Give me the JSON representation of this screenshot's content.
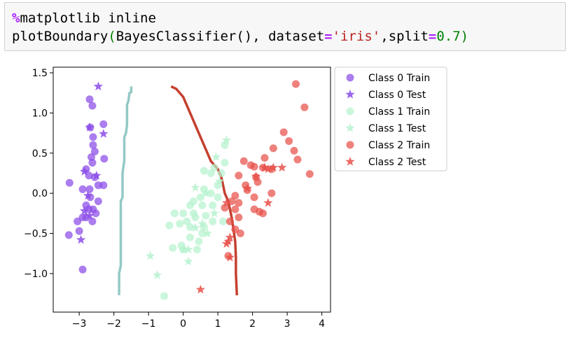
{
  "code": {
    "line1": {
      "magic": "%",
      "rest": "matplotlib inline"
    },
    "line2": {
      "func": "plotBoundary",
      "open": "(",
      "cls": "BayesClassifier(), dataset",
      "eq1": "=",
      "str": "'iris'",
      "sep": ",split",
      "eq2": "=",
      "num": "0.7",
      "close": ")"
    }
  },
  "colors": {
    "class0": "#8a4be8",
    "class1": "#b6f2cf",
    "class2": "#e8504a",
    "boundary_left": "#93c9c6",
    "boundary_right": "#c5402f"
  },
  "chart_data": {
    "type": "scatter",
    "xlim": [
      -3.75,
      4.25
    ],
    "ylim": [
      -1.48,
      1.57
    ],
    "xticks": [
      -3,
      -2,
      -1,
      0,
      1,
      2,
      3,
      4
    ],
    "xtick_labels": [
      "−3",
      "−2",
      "−1",
      "0",
      "1",
      "2",
      "3",
      "4"
    ],
    "yticks": [
      1.5,
      1.0,
      0.5,
      0.0,
      -0.5,
      -1.0
    ],
    "ytick_labels": [
      "1.5",
      "1.0",
      "0.5",
      "0.0",
      "−0.5",
      "−1.0"
    ],
    "legend_position": "outside-right",
    "series": [
      {
        "name": "Class 0 Train",
        "marker": "circle",
        "color": "#8a4be8",
        "points": [
          [
            -2.7,
            1.17
          ],
          [
            -2.62,
            1.09
          ],
          [
            -2.3,
            0.86
          ],
          [
            -2.68,
            0.82
          ],
          [
            -2.6,
            0.7
          ],
          [
            -2.6,
            0.6
          ],
          [
            -2.55,
            0.52
          ],
          [
            -2.65,
            0.45
          ],
          [
            -2.28,
            0.43
          ],
          [
            -2.62,
            0.38
          ],
          [
            -2.8,
            0.3
          ],
          [
            -2.72,
            0.22
          ],
          [
            -2.55,
            0.2
          ],
          [
            -2.3,
            0.1
          ],
          [
            -2.45,
            0.1
          ],
          [
            -2.7,
            0.05
          ],
          [
            -2.9,
            0.05
          ],
          [
            -3.28,
            0.13
          ],
          [
            -2.68,
            -0.05
          ],
          [
            -2.45,
            -0.1
          ],
          [
            -2.8,
            -0.15
          ],
          [
            -2.72,
            -0.2
          ],
          [
            -2.6,
            -0.2
          ],
          [
            -2.52,
            -0.25
          ],
          [
            -2.8,
            -0.3
          ],
          [
            -2.9,
            -0.3
          ],
          [
            -2.62,
            -0.35
          ],
          [
            -3.05,
            -0.35
          ],
          [
            -3.0,
            -0.47
          ],
          [
            -3.3,
            -0.52
          ],
          [
            -2.9,
            -0.95
          ]
        ]
      },
      {
        "name": "Class 0 Test",
        "marker": "star",
        "color": "#8a4be8",
        "points": [
          [
            -2.45,
            1.33
          ],
          [
            -2.3,
            0.74
          ],
          [
            -2.7,
            0.82
          ],
          [
            -2.85,
            0.27
          ],
          [
            -2.5,
            0.22
          ],
          [
            -2.75,
            -0.03
          ],
          [
            -2.85,
            -0.22
          ],
          [
            -2.7,
            -0.28
          ],
          [
            -2.95,
            -0.58
          ]
        ]
      },
      {
        "name": "Class 1 Train",
        "marker": "circle",
        "color": "#b6f2cf",
        "points": [
          [
            1.2,
            0.6
          ],
          [
            1.2,
            0.38
          ],
          [
            0.9,
            0.32
          ],
          [
            1.1,
            0.25
          ],
          [
            0.6,
            0.28
          ],
          [
            0.8,
            0.25
          ],
          [
            1.0,
            0.1
          ],
          [
            0.6,
            0.05
          ],
          [
            0.8,
            0.0
          ],
          [
            1.0,
            -0.05
          ],
          [
            0.5,
            -0.05
          ],
          [
            0.3,
            -0.1
          ],
          [
            0.2,
            -0.15
          ],
          [
            0.55,
            -0.15
          ],
          [
            0.85,
            -0.15
          ],
          [
            0.3,
            -0.25
          ],
          [
            0.65,
            -0.28
          ],
          [
            -0.25,
            -0.25
          ],
          [
            0.0,
            -0.25
          ],
          [
            0.1,
            -0.35
          ],
          [
            0.35,
            -0.3
          ],
          [
            0.85,
            -0.35
          ],
          [
            1.15,
            -0.35
          ],
          [
            -0.1,
            -0.38
          ],
          [
            0.2,
            -0.42
          ],
          [
            0.6,
            -0.42
          ],
          [
            0.55,
            -0.5
          ],
          [
            0.2,
            -0.55
          ],
          [
            0.45,
            -0.6
          ],
          [
            -0.05,
            -0.65
          ],
          [
            -0.3,
            -0.68
          ],
          [
            0.0,
            -0.7
          ],
          [
            0.4,
            -0.7
          ],
          [
            -0.4,
            -0.4
          ],
          [
            -0.55,
            -1.28
          ]
        ]
      },
      {
        "name": "Class 1 Test",
        "marker": "star",
        "color": "#b6f2cf",
        "points": [
          [
            1.25,
            0.66
          ],
          [
            0.95,
            0.45
          ],
          [
            1.05,
            0.15
          ],
          [
            0.35,
            0.07
          ],
          [
            0.65,
            0.0
          ],
          [
            0.9,
            -0.25
          ],
          [
            0.55,
            -0.38
          ],
          [
            0.35,
            -0.43
          ],
          [
            0.7,
            -0.5
          ],
          [
            0.15,
            -0.7
          ],
          [
            0.0,
            -0.7
          ],
          [
            -0.95,
            -0.78
          ],
          [
            -0.75,
            -1.02
          ],
          [
            0.15,
            -0.85
          ]
        ]
      },
      {
        "name": "Class 2 Train",
        "marker": "circle",
        "color": "#e8504a",
        "points": [
          [
            3.25,
            1.36
          ],
          [
            3.5,
            1.07
          ],
          [
            2.9,
            0.76
          ],
          [
            3.05,
            0.65
          ],
          [
            2.6,
            0.56
          ],
          [
            3.2,
            0.53
          ],
          [
            3.3,
            0.42
          ],
          [
            2.35,
            0.44
          ],
          [
            1.75,
            0.4
          ],
          [
            1.95,
            0.35
          ],
          [
            2.05,
            0.33
          ],
          [
            2.3,
            0.32
          ],
          [
            2.55,
            0.3
          ],
          [
            3.65,
            0.24
          ],
          [
            1.6,
            0.22
          ],
          [
            2.1,
            0.2
          ],
          [
            2.15,
            0.14
          ],
          [
            1.8,
            0.1
          ],
          [
            1.85,
            0.04
          ],
          [
            2.55,
            0.0
          ],
          [
            1.5,
            -0.03
          ],
          [
            2.05,
            -0.05
          ],
          [
            1.4,
            -0.1
          ],
          [
            1.6,
            -0.12
          ],
          [
            1.2,
            -0.18
          ],
          [
            1.5,
            -0.2
          ],
          [
            2.2,
            -0.23
          ],
          [
            2.3,
            -0.25
          ],
          [
            2.05,
            -0.2
          ],
          [
            1.6,
            -0.3
          ],
          [
            1.35,
            -0.35
          ],
          [
            1.5,
            -0.45
          ],
          [
            1.65,
            -0.5
          ],
          [
            1.3,
            -0.78
          ]
        ]
      },
      {
        "name": "Class 2 Test",
        "marker": "star",
        "color": "#e8504a",
        "points": [
          [
            2.35,
            0.32
          ],
          [
            2.45,
            0.3
          ],
          [
            2.6,
            0.32
          ],
          [
            2.85,
            0.32
          ],
          [
            2.1,
            0.21
          ],
          [
            1.85,
            0.06
          ],
          [
            1.25,
            -0.12
          ],
          [
            1.3,
            -0.6
          ],
          [
            1.35,
            -0.55
          ],
          [
            1.35,
            -0.8
          ],
          [
            1.25,
            -0.63
          ],
          [
            0.5,
            -1.2
          ],
          [
            2.45,
            -0.12
          ]
        ]
      }
    ],
    "boundaries": [
      {
        "color": "#93c9c6",
        "points": [
          [
            -1.85,
            -1.27
          ],
          [
            -1.85,
            -1.0
          ],
          [
            -1.8,
            -0.9
          ],
          [
            -1.8,
            -0.1
          ],
          [
            -1.75,
            -0.05
          ],
          [
            -1.75,
            0.25
          ],
          [
            -1.72,
            0.35
          ],
          [
            -1.7,
            0.4
          ],
          [
            -1.7,
            0.7
          ],
          [
            -1.65,
            0.75
          ],
          [
            -1.62,
            0.85
          ],
          [
            -1.62,
            1.1
          ],
          [
            -1.58,
            1.15
          ],
          [
            -1.55,
            1.25
          ],
          [
            -1.5,
            1.26
          ],
          [
            -1.5,
            1.33
          ]
        ]
      },
      {
        "color": "#c5402f",
        "points": [
          [
            -0.35,
            1.33
          ],
          [
            -0.2,
            1.3
          ],
          [
            0.0,
            1.2
          ],
          [
            0.2,
            1.0
          ],
          [
            0.4,
            0.8
          ],
          [
            0.6,
            0.6
          ],
          [
            0.8,
            0.4
          ],
          [
            1.0,
            0.3
          ],
          [
            1.1,
            0.2
          ],
          [
            1.15,
            0.1
          ],
          [
            1.2,
            0.0
          ],
          [
            1.3,
            -0.1
          ],
          [
            1.35,
            -0.2
          ],
          [
            1.4,
            -0.3
          ],
          [
            1.45,
            -0.45
          ],
          [
            1.5,
            -0.6
          ],
          [
            1.52,
            -0.8
          ],
          [
            1.52,
            -1.0
          ],
          [
            1.55,
            -1.27
          ]
        ]
      }
    ]
  }
}
